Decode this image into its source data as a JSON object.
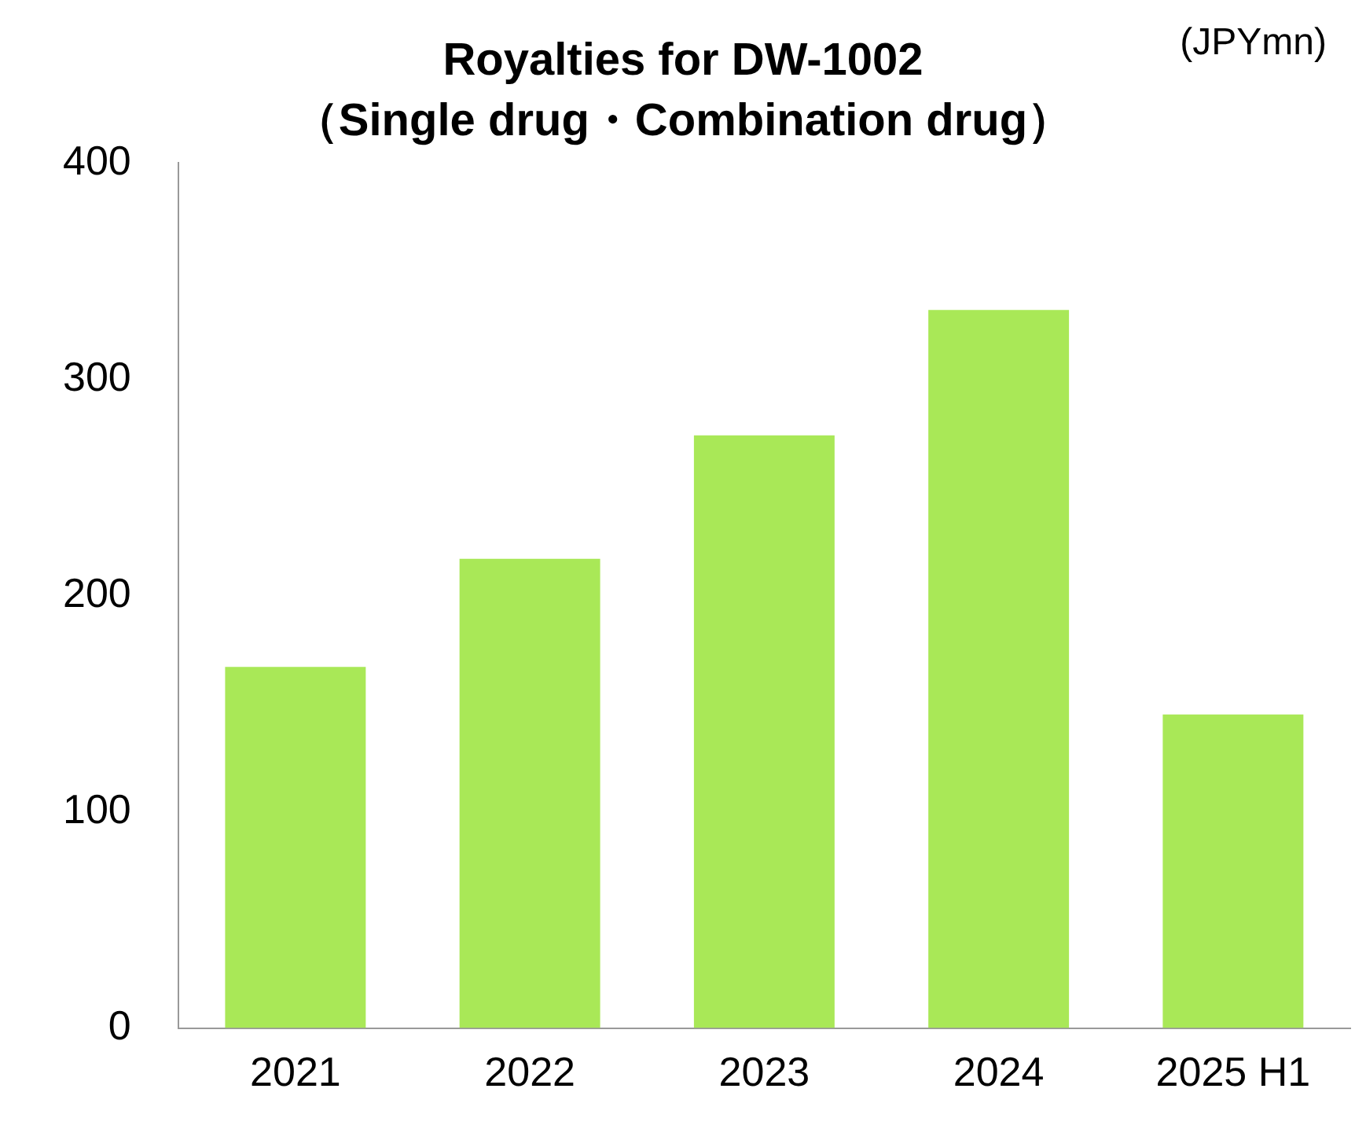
{
  "chart_data": {
    "type": "bar",
    "title": "Royalties for DW-1002",
    "subtitle": "（Single drug・Combination drug）",
    "ylabel": "(JPYmn)",
    "categories": [
      "2021",
      "2022",
      "2023",
      "2024",
      "2025 H1"
    ],
    "values": [
      167,
      217,
      274,
      332,
      145
    ],
    "color": "#a9e857",
    "ylim": [
      0,
      400
    ],
    "yticks": [
      0,
      100,
      200,
      300,
      400
    ],
    "grid": false,
    "legend": false
  }
}
